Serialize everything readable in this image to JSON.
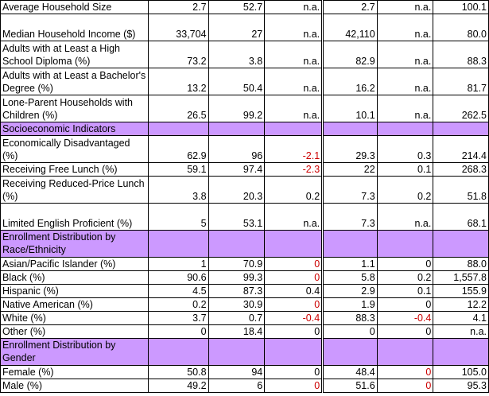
{
  "colors": {
    "section_bg": "#cc99ff",
    "negative_text": "#cc0000"
  },
  "rows": [
    {
      "type": "data",
      "label": "Average Household Size",
      "values": [
        "2.7",
        "52.7",
        "n.a.",
        "2.7",
        "n.a.",
        "100.1"
      ],
      "neg": [
        false,
        false,
        false,
        false,
        false,
        false
      ]
    },
    {
      "type": "data",
      "label": "Median Household Income ($)",
      "values": [
        "33,704",
        "27",
        "n.a.",
        "42,110",
        "n.a.",
        "80.0"
      ],
      "neg": [
        false,
        false,
        false,
        false,
        false,
        false
      ]
    },
    {
      "type": "data",
      "label": "Adults with at Least a High School Diploma (%)",
      "values": [
        "73.2",
        "3.8",
        "n.a.",
        "82.9",
        "n.a.",
        "88.3"
      ],
      "neg": [
        false,
        false,
        false,
        false,
        false,
        false
      ]
    },
    {
      "type": "data",
      "label": "Adults with at Least a Bachelor's Degree (%)",
      "values": [
        "13.2",
        "50.4",
        "n.a.",
        "16.2",
        "n.a.",
        "81.7"
      ],
      "neg": [
        false,
        false,
        false,
        false,
        false,
        false
      ]
    },
    {
      "type": "data",
      "label": "Lone-Parent Households with Children (%)",
      "values": [
        "26.5",
        "99.2",
        "n.a.",
        "10.1",
        "n.a.",
        "262.5"
      ],
      "neg": [
        false,
        false,
        false,
        false,
        false,
        false
      ]
    },
    {
      "type": "section",
      "label": "Socioeconomic Indicators"
    },
    {
      "type": "data",
      "label": "Economically Disadvantaged (%)",
      "values": [
        "62.9",
        "96",
        "-2.1",
        "29.3",
        "0.3",
        "214.4"
      ],
      "neg": [
        false,
        false,
        true,
        false,
        false,
        false
      ]
    },
    {
      "type": "data",
      "label": "Receiving Free Lunch (%)",
      "values": [
        "59.1",
        "97.4",
        "-2.3",
        "22",
        "0.1",
        "268.3"
      ],
      "neg": [
        false,
        false,
        true,
        false,
        false,
        false
      ]
    },
    {
      "type": "data",
      "label": "Receiving Reduced-Price Lunch (%)",
      "values": [
        "3.8",
        "20.3",
        "0.2",
        "7.3",
        "0.2",
        "51.8"
      ],
      "neg": [
        false,
        false,
        false,
        false,
        false,
        false
      ]
    },
    {
      "type": "data",
      "label": "Limited English Proficient (%)",
      "values": [
        "5",
        "53.1",
        "n.a.",
        "7.3",
        "n.a.",
        "68.1"
      ],
      "neg": [
        false,
        false,
        false,
        false,
        false,
        false
      ]
    },
    {
      "type": "section",
      "label": "Enrollment Distribution by Race/Ethnicity"
    },
    {
      "type": "data",
      "label": "Asian/Pacific Islander (%)",
      "values": [
        "1",
        "70.9",
        "0",
        "1.1",
        "0",
        "88.0"
      ],
      "neg": [
        false,
        false,
        true,
        false,
        false,
        false
      ]
    },
    {
      "type": "data",
      "label": "Black (%)",
      "values": [
        "90.6",
        "99.3",
        "0",
        "5.8",
        "0.2",
        "1,557.8"
      ],
      "neg": [
        false,
        false,
        true,
        false,
        false,
        false
      ]
    },
    {
      "type": "data",
      "label": "Hispanic (%)",
      "values": [
        "4.5",
        "87.3",
        "0.4",
        "2.9",
        "0.1",
        "155.9"
      ],
      "neg": [
        false,
        false,
        false,
        false,
        false,
        false
      ]
    },
    {
      "type": "data",
      "label": "Native American (%)",
      "values": [
        "0.2",
        "30.9",
        "0",
        "1.9",
        "0",
        "12.2"
      ],
      "neg": [
        false,
        false,
        true,
        false,
        false,
        false
      ]
    },
    {
      "type": "data",
      "label": "White (%)",
      "values": [
        "3.7",
        "0.7",
        "-0.4",
        "88.3",
        "-0.4",
        "4.1"
      ],
      "neg": [
        false,
        false,
        true,
        false,
        true,
        false
      ]
    },
    {
      "type": "data",
      "label": "Other (%)",
      "values": [
        "0",
        "18.4",
        "0",
        "0",
        "0",
        "n.a."
      ],
      "neg": [
        false,
        false,
        false,
        false,
        false,
        false
      ]
    },
    {
      "type": "section",
      "label": "Enrollment Distribution by Gender"
    },
    {
      "type": "data",
      "label": "Female (%)",
      "values": [
        "50.8",
        "94",
        "0",
        "48.4",
        "0",
        "105.0"
      ],
      "neg": [
        false,
        false,
        false,
        false,
        true,
        false
      ]
    },
    {
      "type": "data",
      "label": "Male (%)",
      "values": [
        "49.2",
        "6",
        "0",
        "51.6",
        "0",
        "95.3"
      ],
      "neg": [
        false,
        false,
        true,
        false,
        true,
        false
      ]
    }
  ]
}
